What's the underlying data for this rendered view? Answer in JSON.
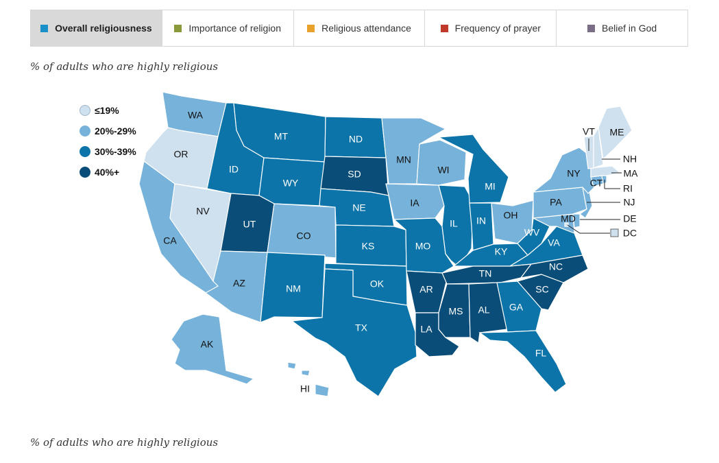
{
  "tabs": [
    {
      "label": "Overall religiousness",
      "color": "#1b8fc7",
      "active": true
    },
    {
      "label": "Importance of religion",
      "color": "#8a9a3a",
      "active": false
    },
    {
      "label": "Religious attendance",
      "color": "#e8a12a",
      "active": false
    },
    {
      "label": "Frequency of prayer",
      "color": "#c03a2b",
      "active": false
    },
    {
      "label": "Belief in God",
      "color": "#7a6d86",
      "active": false
    }
  ],
  "subtitle": "% of adults who are highly religious",
  "subtitle_bottom": "% of adults who are highly religious",
  "legend": [
    {
      "label": "≤19%",
      "color": "#cfe0ef"
    },
    {
      "label": "20%-29%",
      "color": "#76b2d9"
    },
    {
      "label": "30%-39%",
      "color": "#0c74a8"
    },
    {
      "label": "40%+",
      "color": "#0a4d78"
    }
  ],
  "colors": {
    "c1": "#cfe0ef",
    "c2": "#76b2d9",
    "c3": "#0c74a8",
    "c4": "#0a4d78"
  },
  "states": {
    "WA": {
      "label": "WA",
      "bin": "20%-29%"
    },
    "OR": {
      "label": "OR",
      "bin": "≤19%"
    },
    "CA": {
      "label": "CA",
      "bin": "20%-29%"
    },
    "NV": {
      "label": "NV",
      "bin": "≤19%"
    },
    "ID": {
      "label": "ID",
      "bin": "30%-39%"
    },
    "MT": {
      "label": "MT",
      "bin": "30%-39%"
    },
    "WY": {
      "label": "WY",
      "bin": "30%-39%"
    },
    "UT": {
      "label": "UT",
      "bin": "40%+"
    },
    "AZ": {
      "label": "AZ",
      "bin": "20%-29%"
    },
    "CO": {
      "label": "CO",
      "bin": "20%-29%"
    },
    "NM": {
      "label": "NM",
      "bin": "30%-39%"
    },
    "ND": {
      "label": "ND",
      "bin": "30%-39%"
    },
    "SD": {
      "label": "SD",
      "bin": "40%+"
    },
    "NE": {
      "label": "NE",
      "bin": "30%-39%"
    },
    "KS": {
      "label": "KS",
      "bin": "30%-39%"
    },
    "OK": {
      "label": "OK",
      "bin": "30%-39%"
    },
    "TX": {
      "label": "TX",
      "bin": "30%-39%"
    },
    "MN": {
      "label": "MN",
      "bin": "20%-29%"
    },
    "IA": {
      "label": "IA",
      "bin": "20%-29%"
    },
    "MO": {
      "label": "MO",
      "bin": "30%-39%"
    },
    "AR": {
      "label": "AR",
      "bin": "40%+"
    },
    "LA": {
      "label": "LA",
      "bin": "40%+"
    },
    "WI": {
      "label": "WI",
      "bin": "20%-29%"
    },
    "IL": {
      "label": "IL",
      "bin": "30%-39%"
    },
    "MI": {
      "label": "MI",
      "bin": "30%-39%"
    },
    "IN": {
      "label": "IN",
      "bin": "30%-39%"
    },
    "OH": {
      "label": "OH",
      "bin": "20%-29%"
    },
    "KY": {
      "label": "KY",
      "bin": "30%-39%"
    },
    "TN": {
      "label": "TN",
      "bin": "40%+"
    },
    "MS": {
      "label": "MS",
      "bin": "40%+"
    },
    "AL": {
      "label": "AL",
      "bin": "40%+"
    },
    "GA": {
      "label": "GA",
      "bin": "30%-39%"
    },
    "FL": {
      "label": "FL",
      "bin": "30%-39%"
    },
    "SC": {
      "label": "SC",
      "bin": "40%+"
    },
    "NC": {
      "label": "NC",
      "bin": "40%+"
    },
    "VA": {
      "label": "VA",
      "bin": "30%-39%"
    },
    "WV": {
      "label": "WV",
      "bin": "30%-39%"
    },
    "MD": {
      "label": "MD",
      "bin": "20%-29%"
    },
    "DE": {
      "label": "DE",
      "bin": "20%-29%"
    },
    "DC": {
      "label": "DC",
      "bin": "≤19%"
    },
    "PA": {
      "label": "PA",
      "bin": "20%-29%"
    },
    "NJ": {
      "label": "NJ",
      "bin": "20%-29%"
    },
    "NY": {
      "label": "NY",
      "bin": "20%-29%"
    },
    "CT": {
      "label": "CT",
      "bin": "20%-29%"
    },
    "RI": {
      "label": "RI",
      "bin": "20%-29%"
    },
    "MA": {
      "label": "MA",
      "bin": "≤19%"
    },
    "VT": {
      "label": "VT",
      "bin": "≤19%"
    },
    "NH": {
      "label": "NH",
      "bin": "≤19%"
    },
    "ME": {
      "label": "ME",
      "bin": "≤19%"
    },
    "AK": {
      "label": "AK",
      "bin": "20%-29%"
    },
    "HI": {
      "label": "HI",
      "bin": "20%-29%"
    }
  }
}
